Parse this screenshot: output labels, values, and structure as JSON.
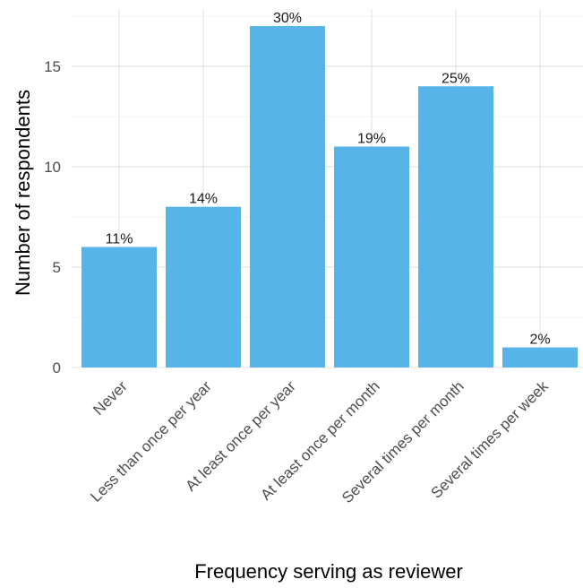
{
  "chart_data": {
    "type": "bar",
    "categories": [
      "Never",
      "Less than once per year",
      "At least once per year",
      "At least once per month",
      "Several times per month",
      "Several times per week"
    ],
    "values": [
      6,
      8,
      17,
      11,
      14,
      1
    ],
    "data_labels": [
      "11%",
      "14%",
      "30%",
      "19%",
      "25%",
      "2%"
    ],
    "title": "",
    "xlabel": "Frequency serving as reviewer",
    "ylabel": "Number of respondents",
    "ylim": [
      0,
      17.85
    ],
    "yticks": [
      0,
      5,
      10,
      15
    ],
    "grid": true,
    "bar_color": "#56b4e9"
  }
}
